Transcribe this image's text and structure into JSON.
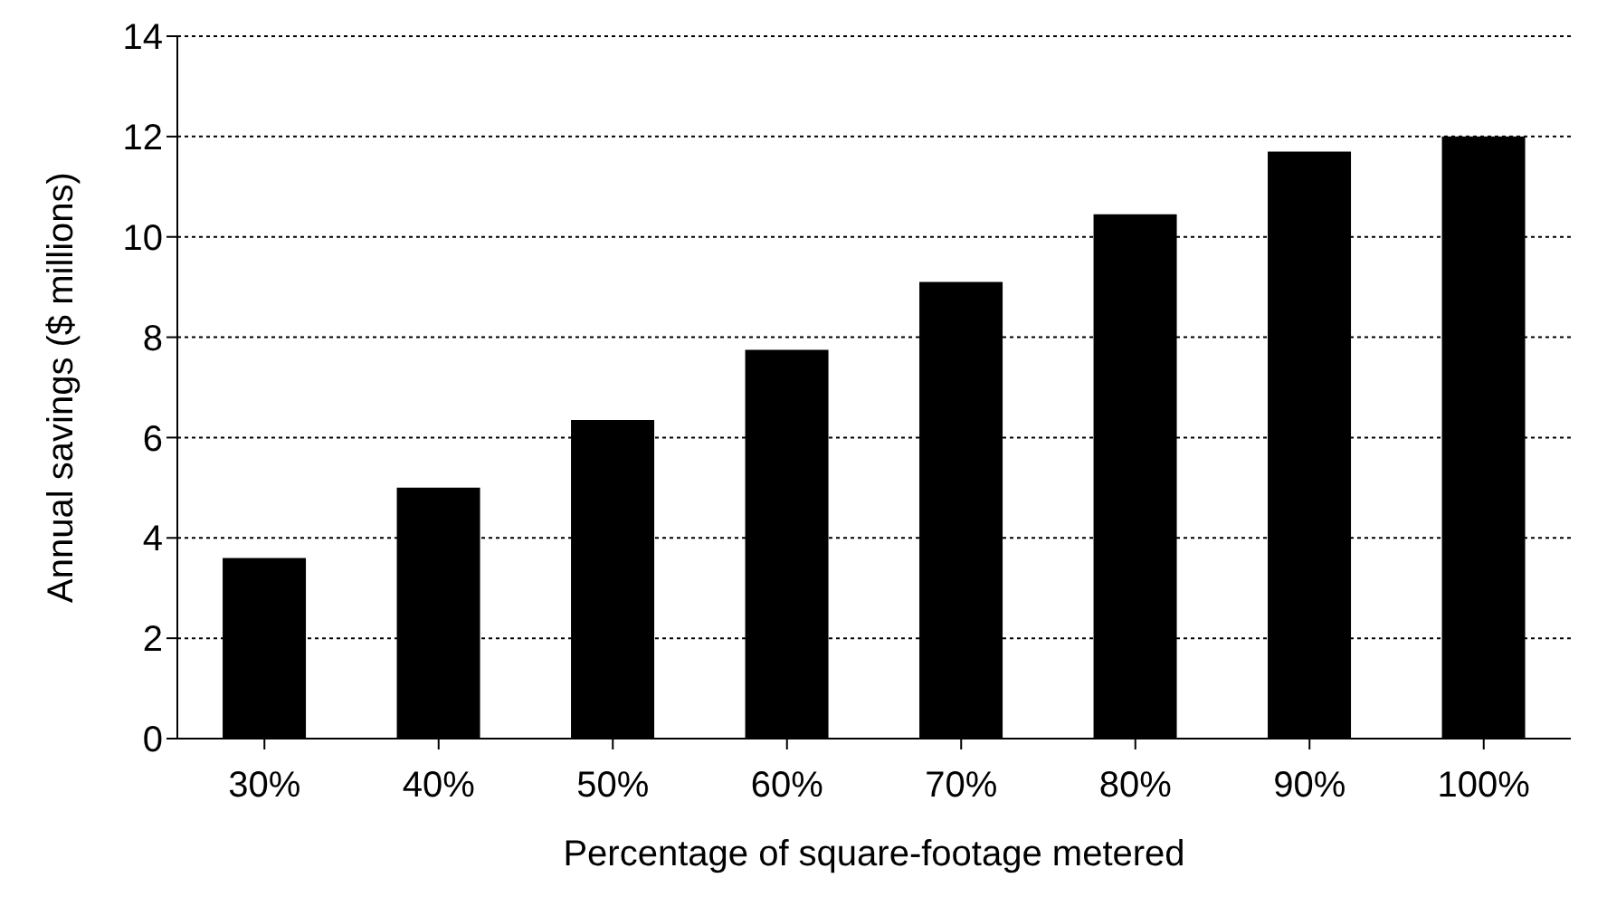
{
  "chart_data": {
    "type": "bar",
    "xlabel": "Percentage of square-footage metered",
    "ylabel": "Annual savings ($ millions)",
    "categories": [
      "30%",
      "40%",
      "50%",
      "60%",
      "70%",
      "80%",
      "90%",
      "100%"
    ],
    "values": [
      3.6,
      5.0,
      6.35,
      7.75,
      9.1,
      10.45,
      11.7,
      12.0
    ],
    "color": "#000000",
    "ylim": [
      0,
      14
    ],
    "yticks": [
      0,
      2,
      4,
      6,
      8,
      10,
      12,
      14
    ],
    "grid": "y"
  }
}
